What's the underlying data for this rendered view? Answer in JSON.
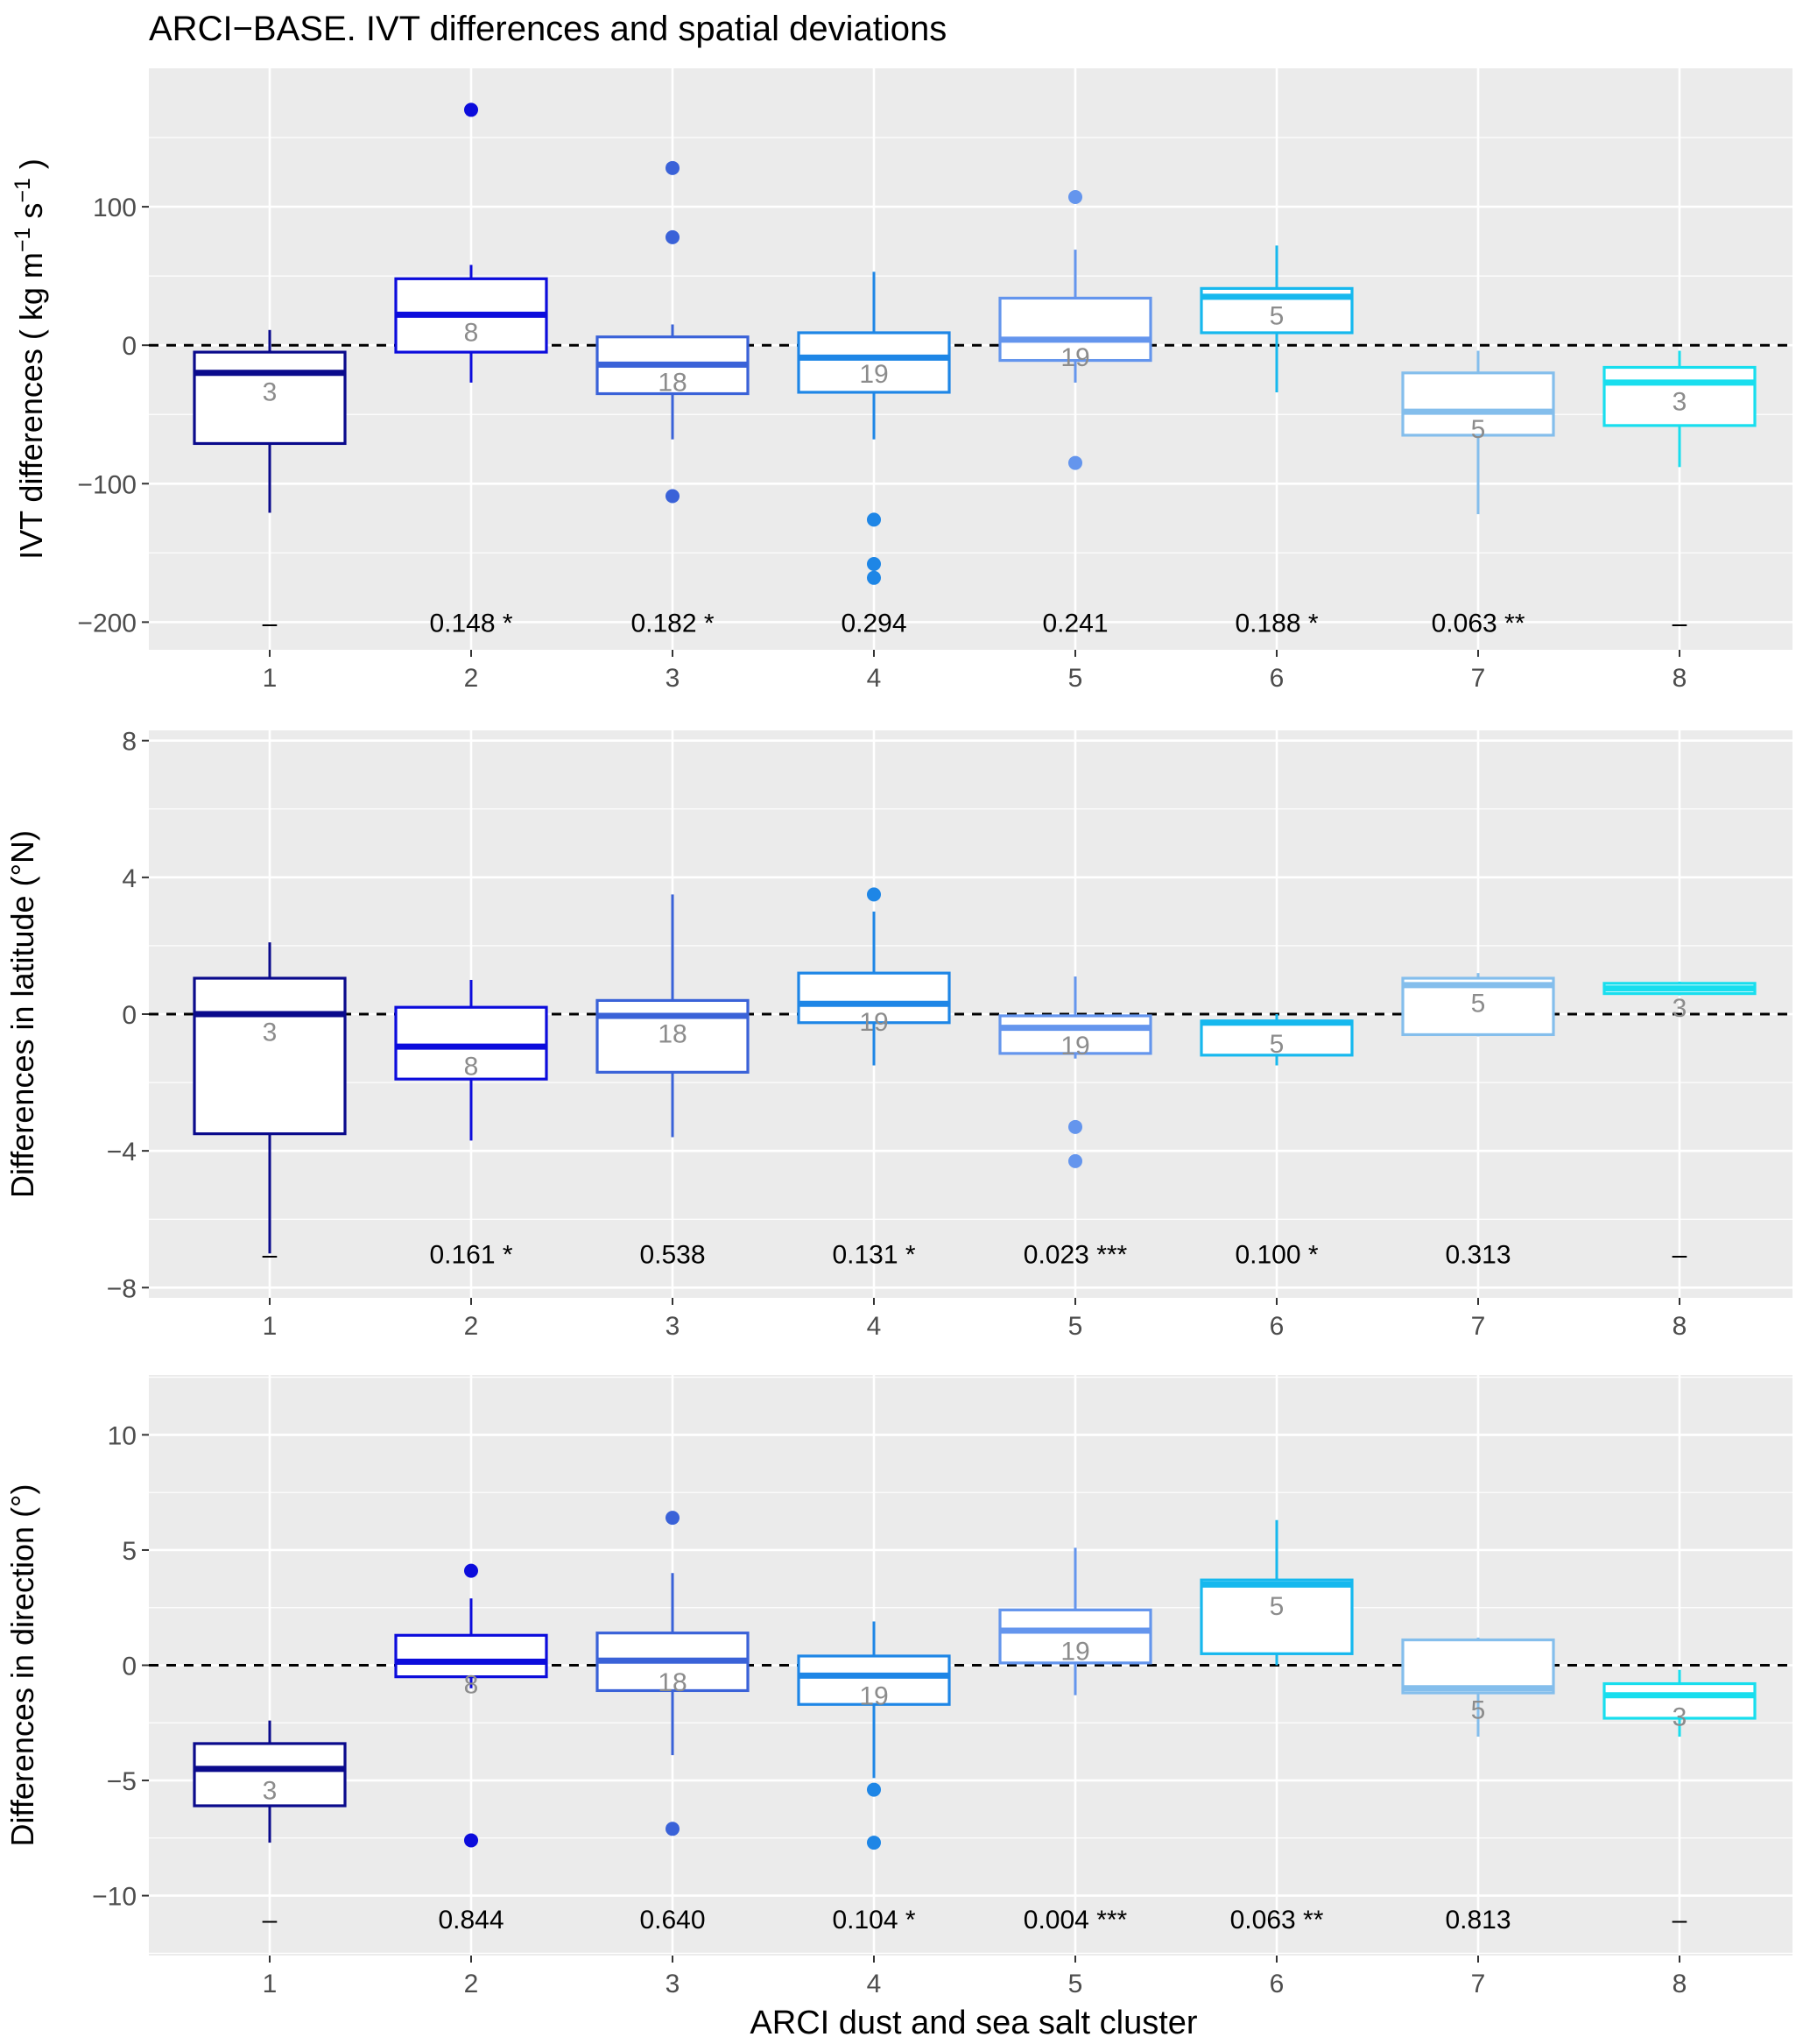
{
  "figure": {
    "title": "ARCI−BASE. IVT differences and spatial deviations",
    "xlabel": "ARCI dust and sea salt cluster"
  },
  "chart_data": [
    {
      "type": "boxplot",
      "id": "ivt",
      "ylabel_main": "IVT differences ( kg m",
      "ylabel_sup1": "−1",
      "ylabel_mid": " s",
      "ylabel_sup2": "−1",
      "ylabel_end": " )",
      "ylim": [
        -220,
        200
      ],
      "yticks": [
        -200,
        -100,
        0,
        100
      ],
      "ytick_labels": [
        "−200",
        "−100",
        "0",
        "100"
      ],
      "reference_line": 0,
      "categories": [
        "1",
        "2",
        "3",
        "4",
        "5",
        "6",
        "7",
        "8"
      ],
      "groups": [
        {
          "cat": "1",
          "q1": -71,
          "median": -20,
          "q3": -5,
          "whisker_low": -121,
          "whisker_high": 11,
          "outliers": [],
          "n_label": "3",
          "n_y": -33,
          "pvalue": "–"
        },
        {
          "cat": "2",
          "q1": -5,
          "median": 22,
          "q3": 48,
          "whisker_low": -27,
          "whisker_high": 58,
          "outliers": [
            170
          ],
          "n_label": "8",
          "n_y": 10,
          "pvalue": "0.148 *"
        },
        {
          "cat": "3",
          "q1": -35,
          "median": -14,
          "q3": 6,
          "whisker_low": -68,
          "whisker_high": 15,
          "outliers": [
            128,
            78,
            -109
          ],
          "n_label": "18",
          "n_y": -26,
          "pvalue": "0.182 *"
        },
        {
          "cat": "4",
          "q1": -34,
          "median": -9,
          "q3": 9,
          "whisker_low": -68,
          "whisker_high": 53,
          "outliers": [
            -126,
            -158,
            -168
          ],
          "n_label": "19",
          "n_y": -20,
          "pvalue": "0.294"
        },
        {
          "cat": "5",
          "q1": -11,
          "median": 4,
          "q3": 34,
          "whisker_low": -27,
          "whisker_high": 69,
          "outliers": [
            107,
            -85
          ],
          "n_label": "19",
          "n_y": -8,
          "pvalue": "0.241"
        },
        {
          "cat": "6",
          "q1": 9,
          "median": 35,
          "q3": 41,
          "whisker_low": -34,
          "whisker_high": 72,
          "outliers": [],
          "n_label": "5",
          "n_y": 22,
          "pvalue": "0.188 *"
        },
        {
          "cat": "7",
          "q1": -65,
          "median": -48,
          "q3": -20,
          "whisker_low": -122,
          "whisker_high": -4,
          "outliers": [],
          "n_label": "5",
          "n_y": -60,
          "pvalue": "0.063 **"
        },
        {
          "cat": "8",
          "q1": -58,
          "median": -27,
          "q3": -16,
          "whisker_low": -88,
          "whisker_high": -4,
          "outliers": [],
          "n_label": "3",
          "n_y": -40,
          "pvalue": "–"
        }
      ],
      "pvalue_y": -200
    },
    {
      "type": "boxplot",
      "id": "lat",
      "ylabel_main": "Differences in latitude (°N)",
      "ylim": [
        -8.3,
        8.3
      ],
      "yticks": [
        -8,
        -4,
        0,
        4,
        8
      ],
      "ytick_labels": [
        "−8",
        "−4",
        "0",
        "4",
        "8"
      ],
      "reference_line": 0,
      "categories": [
        "1",
        "2",
        "3",
        "4",
        "5",
        "6",
        "7",
        "8"
      ],
      "groups": [
        {
          "cat": "1",
          "q1": -3.5,
          "median": 0.0,
          "q3": 1.05,
          "whisker_low": -7.0,
          "whisker_high": 2.1,
          "outliers": [],
          "n_label": "3",
          "n_y": -0.5,
          "pvalue": "–"
        },
        {
          "cat": "2",
          "q1": -1.9,
          "median": -0.95,
          "q3": 0.2,
          "whisker_low": -3.7,
          "whisker_high": 1.0,
          "outliers": [],
          "n_label": "8",
          "n_y": -1.5,
          "pvalue": "0.161 *"
        },
        {
          "cat": "3",
          "q1": -1.7,
          "median": -0.05,
          "q3": 0.4,
          "whisker_low": -3.6,
          "whisker_high": 3.5,
          "outliers": [],
          "n_label": "18",
          "n_y": -0.55,
          "pvalue": "0.538"
        },
        {
          "cat": "4",
          "q1": -0.25,
          "median": 0.3,
          "q3": 1.2,
          "whisker_low": -1.5,
          "whisker_high": 3.0,
          "outliers": [
            3.5
          ],
          "n_label": "19",
          "n_y": -0.2,
          "pvalue": "0.131 *"
        },
        {
          "cat": "5",
          "q1": -1.15,
          "median": -0.4,
          "q3": -0.05,
          "whisker_low": -1.3,
          "whisker_high": 1.1,
          "outliers": [
            -3.3,
            -4.3
          ],
          "n_label": "19",
          "n_y": -0.9,
          "pvalue": "0.023 ***"
        },
        {
          "cat": "6",
          "q1": -1.2,
          "median": -0.25,
          "q3": -0.2,
          "whisker_low": -1.5,
          "whisker_high": 0.0,
          "outliers": [],
          "n_label": "5",
          "n_y": -0.85,
          "pvalue": "0.100 *"
        },
        {
          "cat": "7",
          "q1": -0.6,
          "median": 0.85,
          "q3": 1.05,
          "whisker_low": -0.65,
          "whisker_high": 1.2,
          "outliers": [],
          "n_label": "5",
          "n_y": 0.35,
          "pvalue": "0.313"
        },
        {
          "cat": "8",
          "q1": 0.6,
          "median": 0.75,
          "q3": 0.9,
          "whisker_low": 0.55,
          "whisker_high": 0.95,
          "outliers": [],
          "n_label": "3",
          "n_y": 0.2,
          "pvalue": "–"
        }
      ],
      "pvalue_y": -7.0
    },
    {
      "type": "boxplot",
      "id": "dir",
      "ylabel_main": "Differences in direction (°)",
      "ylim": [
        -12.6,
        12.6
      ],
      "yticks": [
        -10,
        -5,
        0,
        5,
        10
      ],
      "ytick_labels": [
        "−10",
        "−5",
        "0",
        "5",
        "10"
      ],
      "reference_line": 0,
      "categories": [
        "1",
        "2",
        "3",
        "4",
        "5",
        "6",
        "7",
        "8"
      ],
      "groups": [
        {
          "cat": "1",
          "q1": -6.1,
          "median": -4.5,
          "q3": -3.4,
          "whisker_low": -7.7,
          "whisker_high": -2.4,
          "outliers": [],
          "n_label": "3",
          "n_y": -5.4,
          "pvalue": "–"
        },
        {
          "cat": "2",
          "q1": -0.5,
          "median": 0.15,
          "q3": 1.3,
          "whisker_low": -1.0,
          "whisker_high": 2.9,
          "outliers": [
            4.1,
            -7.6
          ],
          "n_label": "8",
          "n_y": -0.8,
          "pvalue": "0.844"
        },
        {
          "cat": "3",
          "q1": -1.1,
          "median": 0.2,
          "q3": 1.4,
          "whisker_low": -3.9,
          "whisker_high": 4.0,
          "outliers": [
            6.4,
            -7.1
          ],
          "n_label": "18",
          "n_y": -0.7,
          "pvalue": "0.640"
        },
        {
          "cat": "4",
          "q1": -1.7,
          "median": -0.45,
          "q3": 0.4,
          "whisker_low": -4.9,
          "whisker_high": 1.9,
          "outliers": [
            -5.4,
            -7.7
          ],
          "n_label": "19",
          "n_y": -1.3,
          "pvalue": "0.104 *"
        },
        {
          "cat": "5",
          "q1": 0.1,
          "median": 1.5,
          "q3": 2.4,
          "whisker_low": -1.3,
          "whisker_high": 5.1,
          "outliers": [],
          "n_label": "19",
          "n_y": 0.65,
          "pvalue": "0.004 ***"
        },
        {
          "cat": "6",
          "q1": 0.5,
          "median": 3.5,
          "q3": 3.7,
          "whisker_low": 0.0,
          "whisker_high": 6.3,
          "outliers": [],
          "n_label": "5",
          "n_y": 2.6,
          "pvalue": "0.063 **"
        },
        {
          "cat": "7",
          "q1": -1.2,
          "median": -1.0,
          "q3": 1.1,
          "whisker_low": -3.1,
          "whisker_high": 1.2,
          "outliers": [],
          "n_label": "5",
          "n_y": -1.9,
          "pvalue": "0.813"
        },
        {
          "cat": "8",
          "q1": -2.3,
          "median": -1.3,
          "q3": -0.8,
          "whisker_low": -3.1,
          "whisker_high": -0.2,
          "outliers": [],
          "n_label": "3",
          "n_y": -2.2,
          "pvalue": "–"
        }
      ],
      "pvalue_y": -11.0
    }
  ],
  "colors": {
    "panel_bg": "#EBEBEB",
    "grid": "#FFFFFF",
    "axis_text": "#4D4D4D",
    "n_label": "#8C8C8C",
    "cluster": [
      "#0A0A8C",
      "#0C0CDC",
      "#3A62D8",
      "#1E86E6",
      "#6495ED",
      "#16B8EE",
      "#84BEEC",
      "#18DEEE"
    ]
  }
}
